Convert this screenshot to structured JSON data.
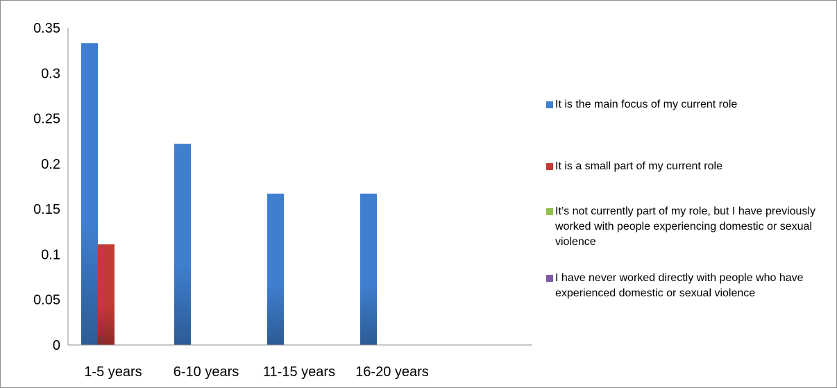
{
  "chart_data": {
    "type": "bar",
    "title": "",
    "xlabel": "",
    "ylabel": "",
    "categories": [
      "1-5 years",
      "6-10 years",
      "11-15 years",
      "16-20 years"
    ],
    "ylim": [
      0,
      0.35
    ],
    "yticks": [
      "0",
      "0.05",
      "0.1",
      "0.15",
      "0.2",
      "0.25",
      "0.3",
      "0.35"
    ],
    "grid": false,
    "legend_position": "right",
    "series": [
      {
        "name": "It is the main focus of my current role",
        "color": "#3f7fcf",
        "values": [
          0.333,
          0.222,
          0.167,
          0.167
        ]
      },
      {
        "name": "It is a small part of my current role",
        "color": "#c43a36",
        "values": [
          0.111,
          0,
          0,
          0
        ]
      },
      {
        "name": "It’s not currently part of my role, but I have previously worked with people experiencing domestic or sexual violence",
        "color": "#93c04a",
        "values": [
          0,
          0,
          0,
          0
        ]
      },
      {
        "name": "I have never worked directly with people who have experienced domestic or sexual violence",
        "color": "#7f5aa6",
        "values": [
          0,
          0,
          0,
          0
        ]
      }
    ]
  }
}
